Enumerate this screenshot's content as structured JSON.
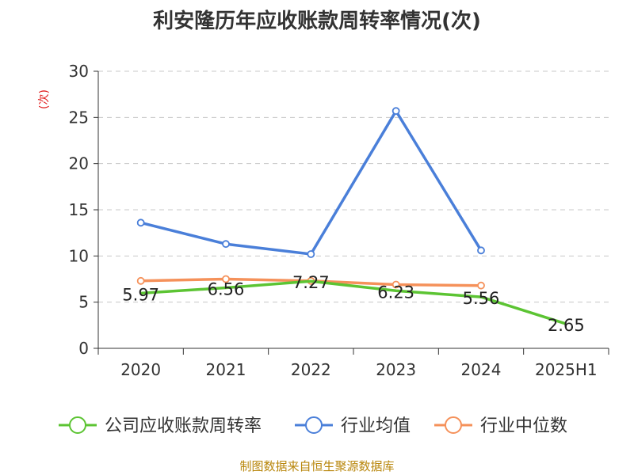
{
  "chart_data": {
    "type": "line",
    "title": "利安隆历年应收账款周转率情况(次)",
    "ylabel": "(次)",
    "xlabel": "",
    "categories": [
      "2020",
      "2021",
      "2022",
      "2023",
      "2024",
      "2025H1"
    ],
    "ylim": [
      0,
      30
    ],
    "yticks": [
      0,
      5,
      10,
      15,
      20,
      25,
      30
    ],
    "grid": true,
    "legend_position": "bottom",
    "series": [
      {
        "name": "公司应收账款周转率",
        "color": "#5cc433",
        "values": [
          5.97,
          6.56,
          7.27,
          6.23,
          5.56,
          2.65
        ],
        "labels": [
          "5.97",
          "6.56",
          "7.27",
          "6.23",
          "5.56",
          "2.65"
        ]
      },
      {
        "name": "行业均值",
        "color": "#4a7fd9",
        "values": [
          13.6,
          11.3,
          10.2,
          25.7,
          10.6,
          null
        ]
      },
      {
        "name": "行业中位数",
        "color": "#f5915a",
        "values": [
          7.3,
          7.5,
          7.3,
          6.9,
          6.8,
          null
        ]
      }
    ]
  },
  "source_text": "制图数据来自恒生聚源数据库"
}
